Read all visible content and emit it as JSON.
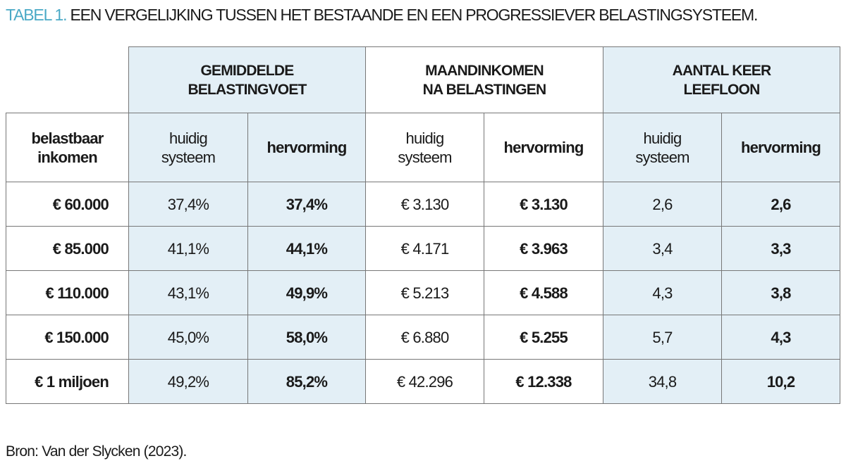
{
  "title": {
    "label": "TABEL 1.",
    "text": " EEN VERGELIJKING TUSSEN HET BESTAANDE EN EEN PROGRESSIEVER BELASTINGSYSTEEM."
  },
  "groups": [
    {
      "line1": "GEMIDDELDE",
      "line2": "BELASTINGVOET"
    },
    {
      "line1": "MAANDINKOMEN",
      "line2": "NA BELASTINGEN"
    },
    {
      "line1": "AANTAL KEER",
      "line2": "LEEFLOON"
    }
  ],
  "row_header": {
    "line1": "belastbaar",
    "line2": "inkomen"
  },
  "sub": {
    "current_line1": "huidig",
    "current_line2": "systeem",
    "reform": "hervorming"
  },
  "rows": [
    {
      "income": "€ 60.000",
      "c": [
        "37,4%",
        "37,4%",
        "€ 3.130",
        "€ 3.130",
        "2,6",
        "2,6"
      ]
    },
    {
      "income": "€ 85.000",
      "c": [
        "41,1%",
        "44,1%",
        "€ 4.171",
        "€ 3.963",
        "3,4",
        "3,3"
      ]
    },
    {
      "income": "€ 110.000",
      "c": [
        "43,1%",
        "49,9%",
        "€ 5.213",
        "€ 4.588",
        "4,3",
        "3,8"
      ]
    },
    {
      "income": "€ 150.000",
      "c": [
        "45,0%",
        "58,0%",
        "€ 6.880",
        "€ 5.255",
        "5,7",
        "4,3"
      ]
    },
    {
      "income": "€ 1 miljoen",
      "c": [
        "49,2%",
        "85,2%",
        "€ 42.296",
        "€ 12.338",
        "34,8",
        "10,2"
      ]
    }
  ],
  "source": "Bron: Van der Slycken (2023).",
  "colors": {
    "accent": "#4aa9c6",
    "cell_blue": "#e3eff6",
    "border": "#777777"
  }
}
